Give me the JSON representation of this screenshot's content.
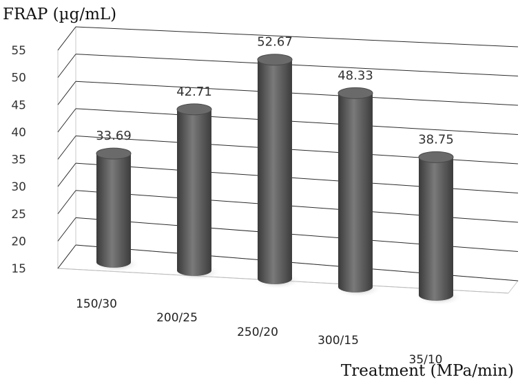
{
  "chart_data": {
    "type": "bar",
    "ylabel": "FRAP (µg/mL)",
    "xlabel": "Treatment (MPa/min)",
    "categories": [
      "150/30",
      "200/25",
      "250/20",
      "300/15",
      "35/10"
    ],
    "values": [
      33.69,
      42.71,
      52.67,
      48.33,
      38.75
    ],
    "value_labels": [
      "33.69",
      "42.71",
      "52.67",
      "48.33",
      "38.75"
    ],
    "ylim": [
      15,
      55
    ],
    "yticks": [
      "15",
      "20",
      "25",
      "30",
      "35",
      "40",
      "45",
      "50",
      "55"
    ],
    "grid": true,
    "style": "3d-cylinder",
    "bar_color": "#555555"
  }
}
